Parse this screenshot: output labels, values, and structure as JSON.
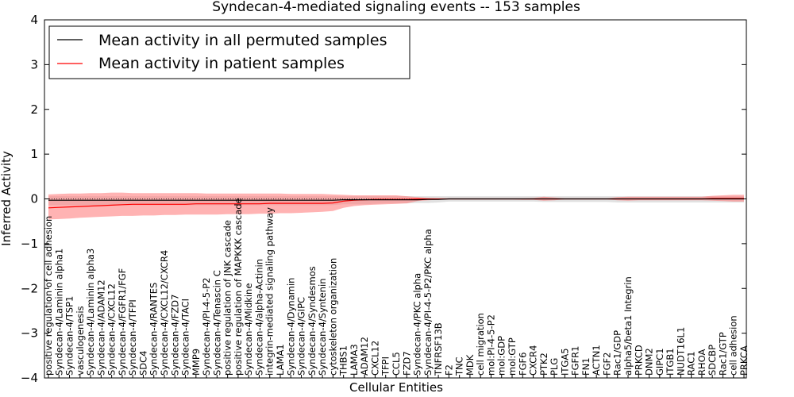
{
  "chart_data": {
    "type": "line",
    "title": "Syndecan-4-mediated signaling events -- 153 samples",
    "xlabel": "Cellular Entities",
    "ylabel": "Inferred Activity",
    "ylim": [
      -4,
      4
    ],
    "yticks": [
      -4,
      -3,
      -2,
      -1,
      0,
      1,
      2,
      3,
      4
    ],
    "ytick_labels": [
      "−4",
      "−3",
      "−2",
      "−1",
      "0",
      "1",
      "2",
      "3",
      "4"
    ],
    "legend_position": "upper-left",
    "colors": {
      "permuted": "#000000",
      "patient": "#ff0000",
      "patient_band": "#ff8080",
      "permuted_band": "#c8c8c8"
    },
    "categories": [
      "positive regulation of cell adhesion",
      "Syndecan-4/Laminin alpha1",
      "Syndecan-4/TSP1",
      "vasculogenesis",
      "Syndecan-4/Laminin alpha3",
      "Syndecan-4/ADAM12",
      "Syndecan-4/CXCL12",
      "Syndecan-4/FGFR1/FGF",
      "Syndecan-4/TFPI",
      "SDC4",
      "Syndecan-4/RANTES",
      "Syndecan-4/CXCL12/CXCR4",
      "Syndecan-4/FZD7",
      "Syndecan-4/TACI",
      "MMP9",
      "Syndecan-4/PI-4-5-P2",
      "Syndecan-4/Tenascin C",
      "positive regulation of JNK cascade",
      "positive regulation of MAPKKK cascade",
      "Syndecan-4/Midkine",
      "Syndecan-4/alpha-Actinin",
      "integrin-mediated signaling pathway",
      "LAMA1",
      "Syndecan-4/Dynamin",
      "Syndecan-4/GIPC",
      "Syndecan-4/Syndesmos",
      "Syndecan-4/Syntenin",
      "cytoskeleton organization",
      "THBS1",
      "LAMA3",
      "ADAM12",
      "CXCL12",
      "TFPI",
      "CCL5",
      "FZD7",
      "Syndecan-4/PKC alpha",
      "Syndecan-4/PI-4-5-P2/PKC alpha",
      "TNFRSF13B",
      "F2",
      "TNC",
      "MDK",
      "cell migration",
      "mol:PI-4-5-P2",
      "mol:GDP",
      "mol:GTP",
      "FGF6",
      "CXCR4",
      "PTK2",
      "PLG",
      "ITGA5",
      "FGFR1",
      "FN1",
      "ACTN1",
      "FGF2",
      "Rac1/GDP",
      "alpha5/beta1 Integrin",
      "PRKCD",
      "DNM2",
      "GIPC1",
      "ITGB1",
      "NUDT16L1",
      "RAC1",
      "RHOA",
      "SDCBP",
      "Rac1/GTP",
      "cell adhesion",
      "PRKCA"
    ],
    "series": [
      {
        "name": "Mean activity in all permuted samples",
        "values": [
          -0.03,
          -0.03,
          -0.03,
          -0.03,
          -0.03,
          -0.03,
          -0.03,
          -0.03,
          -0.03,
          -0.03,
          -0.03,
          -0.03,
          -0.03,
          -0.03,
          -0.03,
          -0.03,
          -0.03,
          -0.03,
          -0.03,
          -0.03,
          -0.03,
          -0.03,
          -0.03,
          -0.03,
          -0.03,
          -0.03,
          -0.03,
          -0.03,
          -0.02,
          -0.02,
          -0.02,
          -0.02,
          -0.02,
          -0.02,
          -0.02,
          -0.02,
          -0.01,
          -0.01,
          0.0,
          0.0,
          0.0,
          0.0,
          0.0,
          0.0,
          0.0,
          0.0,
          0.0,
          0.0,
          0.0,
          0.0,
          0.0,
          0.0,
          0.0,
          0.0,
          0.0,
          0.0,
          0.0,
          0.0,
          0.0,
          0.0,
          0.0,
          0.0,
          0.0,
          0.0,
          0.0,
          0.0,
          0.0
        ],
        "lower": [
          -0.14,
          -0.14,
          -0.14,
          -0.14,
          -0.14,
          -0.14,
          -0.14,
          -0.14,
          -0.14,
          -0.14,
          -0.14,
          -0.14,
          -0.14,
          -0.14,
          -0.14,
          -0.14,
          -0.14,
          -0.14,
          -0.14,
          -0.14,
          -0.14,
          -0.14,
          -0.14,
          -0.14,
          -0.14,
          -0.14,
          -0.14,
          -0.14,
          -0.12,
          -0.12,
          -0.12,
          -0.11,
          -0.1,
          -0.1,
          -0.1,
          -0.09,
          -0.09,
          -0.08,
          -0.06,
          -0.06,
          -0.06,
          -0.06,
          -0.06,
          -0.06,
          -0.06,
          -0.06,
          -0.06,
          -0.07,
          -0.07,
          -0.07,
          -0.07,
          -0.07,
          -0.07,
          -0.07,
          -0.08,
          -0.08,
          -0.08,
          -0.08,
          -0.08,
          -0.08,
          -0.08,
          -0.08,
          -0.08,
          -0.08,
          -0.08,
          -0.08,
          -0.08
        ],
        "upper": [
          0.06,
          0.06,
          0.06,
          0.06,
          0.06,
          0.06,
          0.06,
          0.06,
          0.06,
          0.06,
          0.06,
          0.06,
          0.06,
          0.06,
          0.06,
          0.06,
          0.06,
          0.06,
          0.06,
          0.06,
          0.06,
          0.06,
          0.06,
          0.06,
          0.06,
          0.06,
          0.06,
          0.06,
          0.06,
          0.06,
          0.06,
          0.06,
          0.06,
          0.06,
          0.06,
          0.06,
          0.06,
          0.06,
          0.06,
          0.06,
          0.06,
          0.06,
          0.06,
          0.06,
          0.06,
          0.06,
          0.06,
          0.06,
          0.06,
          0.06,
          0.06,
          0.06,
          0.06,
          0.06,
          0.06,
          0.06,
          0.06,
          0.06,
          0.06,
          0.06,
          0.06,
          0.06,
          0.06,
          0.06,
          0.06,
          0.06,
          0.06
        ]
      },
      {
        "name": "Mean activity in patient samples",
        "values": [
          -0.2,
          -0.19,
          -0.18,
          -0.17,
          -0.16,
          -0.15,
          -0.14,
          -0.13,
          -0.12,
          -0.12,
          -0.12,
          -0.12,
          -0.12,
          -0.12,
          -0.11,
          -0.11,
          -0.11,
          -0.11,
          -0.11,
          -0.11,
          -0.11,
          -0.1,
          -0.1,
          -0.1,
          -0.1,
          -0.1,
          -0.1,
          -0.09,
          -0.05,
          -0.03,
          -0.02,
          -0.01,
          -0.01,
          -0.01,
          -0.01,
          0.0,
          0.0,
          0.0,
          0.0,
          0.0,
          0.0,
          0.0,
          0.0,
          0.0,
          0.0,
          0.0,
          0.0,
          0.0,
          0.0,
          0.0,
          0.0,
          0.0,
          0.0,
          0.0,
          0.0,
          0.0,
          0.0,
          0.0,
          0.0,
          0.0,
          0.0,
          0.0,
          0.0,
          0.01,
          0.01,
          0.01,
          0.01
        ],
        "lower": [
          -0.46,
          -0.45,
          -0.44,
          -0.42,
          -0.41,
          -0.4,
          -0.39,
          -0.38,
          -0.38,
          -0.37,
          -0.37,
          -0.36,
          -0.36,
          -0.35,
          -0.35,
          -0.35,
          -0.35,
          -0.34,
          -0.34,
          -0.34,
          -0.33,
          -0.33,
          -0.32,
          -0.32,
          -0.31,
          -0.3,
          -0.29,
          -0.27,
          -0.2,
          -0.16,
          -0.14,
          -0.13,
          -0.12,
          -0.11,
          -0.1,
          -0.05,
          -0.03,
          -0.02,
          -0.01,
          -0.01,
          -0.01,
          -0.01,
          -0.01,
          -0.01,
          -0.01,
          -0.02,
          -0.02,
          -0.04,
          -0.03,
          -0.01,
          -0.01,
          -0.01,
          -0.01,
          -0.01,
          -0.03,
          -0.04,
          -0.03,
          -0.03,
          -0.03,
          -0.03,
          -0.03,
          -0.03,
          -0.03,
          -0.04,
          -0.05,
          -0.06,
          -0.06
        ],
        "upper": [
          0.1,
          0.11,
          0.12,
          0.12,
          0.13,
          0.13,
          0.14,
          0.14,
          0.13,
          0.13,
          0.13,
          0.13,
          0.13,
          0.13,
          0.13,
          0.12,
          0.12,
          0.12,
          0.12,
          0.12,
          0.12,
          0.12,
          0.12,
          0.11,
          0.11,
          0.11,
          0.11,
          0.1,
          0.09,
          0.08,
          0.08,
          0.08,
          0.08,
          0.08,
          0.06,
          0.04,
          0.02,
          0.01,
          0.01,
          0.01,
          0.01,
          0.01,
          0.01,
          0.01,
          0.01,
          0.01,
          0.02,
          0.05,
          0.03,
          0.01,
          0.01,
          0.01,
          0.01,
          0.01,
          0.04,
          0.05,
          0.05,
          0.05,
          0.05,
          0.05,
          0.05,
          0.05,
          0.05,
          0.07,
          0.08,
          0.09,
          0.09
        ]
      }
    ]
  }
}
